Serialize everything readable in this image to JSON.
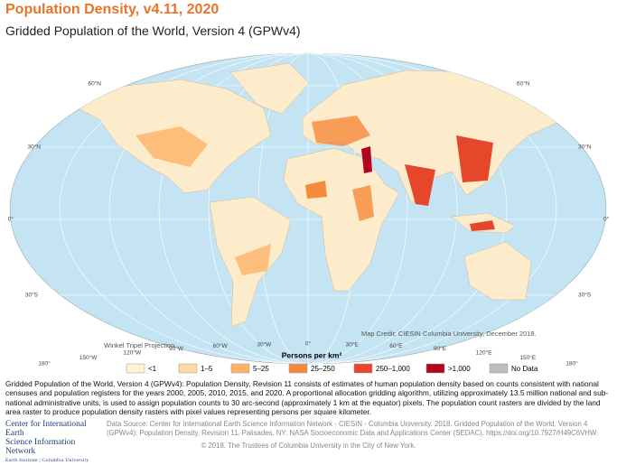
{
  "header": {
    "title": "Population Density, v4.11, 2020",
    "subtitle": "Gridded Population of the World, Version 4 (GPWv4)"
  },
  "map": {
    "lat_labels": [
      "60°N",
      "30°N",
      "0°",
      "30°S"
    ],
    "lon_labels": [
      "180°",
      "150°W",
      "120°W",
      "90°W",
      "60°W",
      "30°W",
      "0°",
      "30°E",
      "60°E",
      "90°E",
      "120°E",
      "150°E",
      "180°"
    ],
    "projection": "Winkel Tripel Projection",
    "credit": "Map Credit: CIESIN Columbia University, December 2018."
  },
  "legend": {
    "title": "Persons per km²",
    "items": [
      {
        "label": "<1",
        "color": "#fef3d7"
      },
      {
        "label": "1–5",
        "color": "#fdd9a3"
      },
      {
        "label": "5–25",
        "color": "#fcb266"
      },
      {
        "label": "25–250",
        "color": "#f68a3b"
      },
      {
        "label": "250–1,000",
        "color": "#e6462a"
      },
      {
        "label": ">1,000",
        "color": "#b2051f"
      },
      {
        "label": "No Data",
        "color": "#bdbdbd"
      }
    ]
  },
  "description": "Gridded Population of the World, Version 4 (GPWv4): Population Density, Revision 11 consists of estimates of human population density based on counts consistent with national censuses and population registers for the years 2000, 2005, 2010, 2015, and 2020. A proportional allocation gridding algorithm, utilizing approximately 13.5 million national and sub-national administrative units, is used to assign population counts to 30 arc-second (approximately 1 km at the equator) pixels. The population count rasters are divided by the land area raster to produce population density rasters with pixel values representing persons per square kilometer.",
  "footer": {
    "logo_line1": "Center for International Earth",
    "logo_line2": "Science Information Network",
    "logo_line3": "Earth Institute | Columbia University",
    "source": "Data Source: Center for International Earth Science Information Network - CIESIN - Columbia University. 2018. Gridded Population of the World, Version 4 (GPWv4): Population Density, Revision 11. Palisades, NY: NASA Socioeconomic Data and Applications Center (SEDAC). https://doi.org/10.7927/H49C6VHW.",
    "copyright": "© 2018. The Trustees of Columbia University in the City of New York."
  }
}
